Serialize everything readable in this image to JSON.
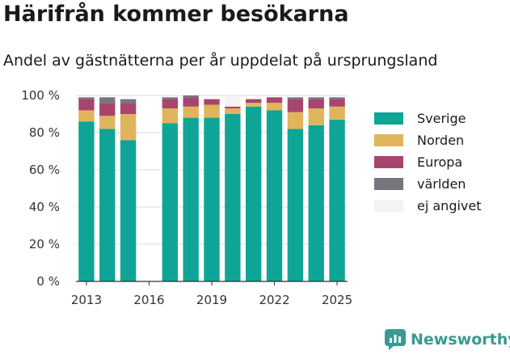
{
  "header": {
    "title": "Härifrån kommer besökarna",
    "subtitle": "Andel av gästnätterna per år uppdelat på ursprungsland"
  },
  "brand": {
    "name": "Newsworthy",
    "icon": "newsworthy-logo-icon",
    "color": "#3a9a92"
  },
  "chart_data": {
    "type": "bar",
    "stacked": true,
    "categories": [
      2013,
      2014,
      2015,
      2016,
      2017,
      2018,
      2019,
      2020,
      2021,
      2022,
      2023,
      2024,
      2025
    ],
    "x_ticks": [
      "2013",
      "2016",
      "2019",
      "2022",
      "2025"
    ],
    "y_ticks": [
      "0 %",
      "20 %",
      "40 %",
      "60 %",
      "80 %",
      "100 %"
    ],
    "ylim": [
      0,
      100
    ],
    "grid": true,
    "legend_position": "right",
    "series": [
      {
        "name": "Sverige",
        "color": "#0ea596",
        "values": [
          86,
          82,
          76,
          null,
          85,
          88,
          88,
          90,
          94,
          92,
          82,
          84,
          87
        ]
      },
      {
        "name": "Norden",
        "color": "#e0b45c",
        "values": [
          6,
          7,
          14,
          null,
          8,
          6,
          7,
          3,
          2,
          4,
          9,
          9,
          7
        ]
      },
      {
        "name": "Europa",
        "color": "#a8456e",
        "values": [
          6,
          7,
          6,
          null,
          5,
          5,
          3,
          1,
          2,
          3,
          7,
          5,
          4
        ]
      },
      {
        "name": "världen",
        "color": "#76767e",
        "values": [
          1,
          3,
          2,
          null,
          1,
          1,
          0,
          0,
          0,
          0,
          1,
          1,
          1
        ]
      },
      {
        "name": "ej angivet",
        "color": "#f3f3f3",
        "values": [
          0,
          0,
          0,
          null,
          0,
          0,
          0,
          6,
          0,
          0,
          0,
          0,
          0
        ]
      }
    ]
  }
}
